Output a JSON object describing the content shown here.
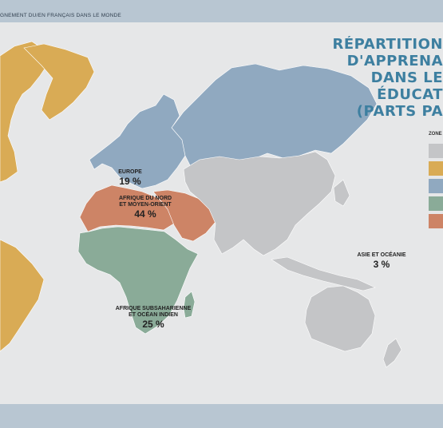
{
  "header": {
    "caption": "GNEMENT DU/EN FRANÇAIS DANS LE MONDE"
  },
  "title": {
    "lines": [
      "RÉPARTITION",
      "D'APPRENA",
      "DANS LE",
      "ÉDUCAT",
      "(PARTS PA"
    ]
  },
  "legend": {
    "title": "ZONE",
    "swatches": [
      {
        "color": "#c4c5c7",
        "icon": "swatch-gray"
      },
      {
        "color": "#d9ab55",
        "icon": "swatch-gold"
      },
      {
        "color": "#90a9c0",
        "icon": "swatch-blue"
      },
      {
        "color": "#8aab98",
        "icon": "swatch-green"
      },
      {
        "color": "#cd8466",
        "icon": "swatch-terracotta"
      }
    ]
  },
  "regions": {
    "europe": {
      "name": "EUROPE",
      "value": "19 %",
      "color": "#90a9c0"
    },
    "north_africa": {
      "name_1": "AFRIQUE DU NORD",
      "name_2": "ET MOYEN-ORIENT",
      "value": "44 %",
      "color": "#cd8466"
    },
    "subsaharan": {
      "name_1": "AFRIQUE SUBSAHARIENNE",
      "name_2": "ET OCÉAN INDIEN",
      "value": "25 %",
      "color": "#8aab98"
    },
    "asia": {
      "name": "ASIE ET OCÉANIE",
      "value": "3 %",
      "color": "#c4c5c7"
    },
    "americas": {
      "color": "#d9ab55"
    }
  },
  "colors": {
    "background": "#e6e7e8",
    "bars": "#b8c6d2",
    "title": "#3d7fa0"
  }
}
